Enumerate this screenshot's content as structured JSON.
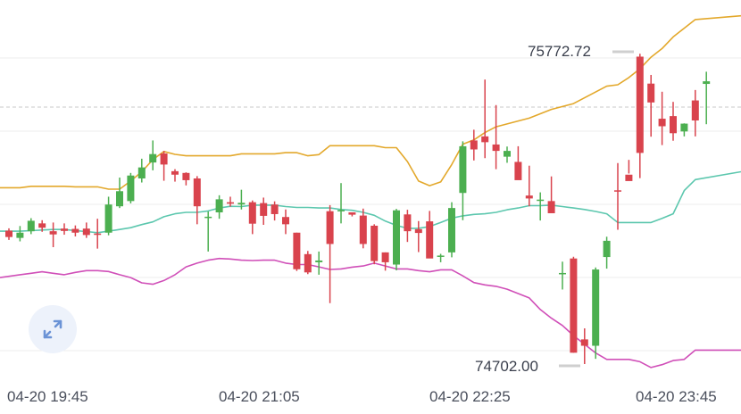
{
  "colors": {
    "up": "#4caf50",
    "down": "#d9434d",
    "upper_band": "#e3a82b",
    "middle_band": "#5cc7ae",
    "lower_band": "#d04fb8",
    "grid": "#eeeeee",
    "last_price_line": "#c8c8c8"
  },
  "expand_icon": "expand-arrows-icon",
  "chart_data": {
    "type": "candlestick",
    "x_tick_labels": [
      "04-20 19:45",
      "04-20 21:05",
      "04-20 22:25",
      "04-20 23:45"
    ],
    "y_scale": {
      "ref_high": 75772.72,
      "ref_low": 74702.0
    },
    "annotations": {
      "high_label": "75772.72",
      "low_label": "74702.00"
    },
    "series": [
      {
        "name": "candles",
        "values": [
          [
            75162,
            75170,
            75130,
            75140
          ],
          [
            75137,
            75178,
            75125,
            75155
          ],
          [
            75160,
            75205,
            75150,
            75196
          ],
          [
            75187,
            75198,
            75158,
            75172
          ],
          [
            75160,
            75190,
            75105,
            75149
          ],
          [
            75169,
            75187,
            75148,
            75161
          ],
          [
            75168,
            75180,
            75142,
            75155
          ],
          [
            75169,
            75190,
            75137,
            75147
          ],
          [
            75152,
            75203,
            75100,
            75150
          ],
          [
            75155,
            75279,
            75146,
            75252
          ],
          [
            75246,
            75345,
            75240,
            75298
          ],
          [
            75264,
            75361,
            75256,
            75352
          ],
          [
            75342,
            75410,
            75328,
            75380
          ],
          [
            75397,
            75473,
            75370,
            75426
          ],
          [
            75428,
            75437,
            75334,
            75390
          ],
          [
            75367,
            75374,
            75331,
            75355
          ],
          [
            75361,
            75363,
            75318,
            75336
          ],
          [
            75342,
            75350,
            75184,
            75246
          ],
          [
            75210,
            75228,
            75090,
            75210
          ],
          [
            75225,
            75284,
            75203,
            75270
          ],
          [
            75260,
            75279,
            75245,
            75255
          ],
          [
            75252,
            75303,
            75235,
            75258
          ],
          [
            75260,
            75266,
            75150,
            75186
          ],
          [
            75257,
            75276,
            75182,
            75213
          ],
          [
            75252,
            75263,
            75197,
            75219
          ],
          [
            75209,
            75235,
            75150,
            75184
          ],
          [
            75155,
            75155,
            75023,
            75029
          ],
          [
            75081,
            75092,
            75012,
            75018
          ],
          [
            75053,
            75090,
            75010,
            75059
          ],
          [
            75229,
            75250,
            74912,
            75116
          ],
          [
            75229,
            75326,
            75187,
            75233
          ],
          [
            75225,
            75225,
            75211,
            75217
          ],
          [
            75214,
            75238,
            75101,
            75116
          ],
          [
            75179,
            75184,
            75046,
            75057
          ],
          [
            75087,
            75087,
            75024,
            75053
          ],
          [
            75045,
            75237,
            75025,
            75232
          ],
          [
            75218,
            75234,
            75123,
            75160
          ],
          [
            75167,
            75195,
            75088,
            75154
          ],
          [
            75194,
            75230,
            75095,
            75066
          ],
          [
            75074,
            75082,
            75053,
            75076
          ],
          [
            75087,
            75260,
            75070,
            75240
          ],
          [
            75292,
            75470,
            75198,
            75453
          ],
          [
            75473,
            75510,
            75404,
            75442
          ],
          [
            75487,
            75683,
            75412,
            75467
          ],
          [
            75459,
            75595,
            75374,
            75437
          ],
          [
            75417,
            75452,
            75396,
            75437
          ],
          [
            75399,
            75453,
            75338,
            75336
          ],
          [
            75283,
            75386,
            75246,
            75273
          ],
          [
            75267,
            75294,
            75197,
            75269
          ],
          [
            75264,
            75349,
            75226,
            75222
          ],
          [
            75015,
            75055,
            74959,
            75016
          ],
          [
            75066,
            75072,
            74741,
            74741
          ],
          [
            74787,
            74825,
            74702,
            74765
          ],
          [
            74765,
            75035,
            74720,
            75028
          ],
          [
            75071,
            75141,
            75031,
            75127
          ],
          [
            75301,
            75395,
            75165,
            75297
          ],
          [
            75355,
            75406,
            75359,
            75333
          ],
          [
            75762,
            75772,
            75343,
            75430
          ],
          [
            75669,
            75699,
            75486,
            75604
          ],
          [
            75548,
            75641,
            75457,
            75522
          ],
          [
            75557,
            75606,
            75472,
            75498
          ],
          [
            75504,
            75532,
            75487,
            75531
          ],
          [
            75611,
            75647,
            75487,
            75542
          ],
          [
            75668,
            75710,
            75529,
            75677
          ]
        ]
      },
      {
        "name": "upper_band",
        "values": [
          75310,
          75310,
          75315,
          75315,
          75315,
          75315,
          75313,
          75313,
          75313,
          75305,
          75305,
          75333,
          75365,
          75407,
          75435,
          75425,
          75420,
          75420,
          75420,
          75420,
          75420,
          75427,
          75427,
          75427,
          75427,
          75431,
          75431,
          75420,
          75424,
          75455,
          75455,
          75455,
          75455,
          75455,
          75448,
          75448,
          75400,
          75333,
          75317,
          75330,
          75390,
          75460,
          75475,
          75500,
          75520,
          75530,
          75540,
          75550,
          75565,
          75580,
          75590,
          75600,
          75620,
          75640,
          75660,
          75665,
          75690,
          75720,
          75760,
          75790,
          75830,
          75860,
          75890,
          75903
        ]
      },
      {
        "name": "middle_band",
        "values": [
          75160,
          75160,
          75162,
          75164,
          75166,
          75166,
          75162,
          75159,
          75155,
          75160,
          75166,
          75172,
          75183,
          75192,
          75210,
          75220,
          75225,
          75225,
          75230,
          75240,
          75246,
          75245,
          75250,
          75250,
          75250,
          75245,
          75242,
          75242,
          75240,
          75240,
          75235,
          75232,
          75225,
          75215,
          75195,
          75180,
          75170,
          75170,
          75176,
          75190,
          75205,
          75213,
          75218,
          75220,
          75225,
          75234,
          75240,
          75248,
          75248,
          75250,
          75245,
          75240,
          75235,
          75228,
          75220,
          75190,
          75190,
          75190,
          75190,
          75204,
          75220,
          75300,
          75338,
          75365
        ]
      },
      {
        "name": "lower_band",
        "values": [
          75000,
          75010,
          75015,
          75020,
          75015,
          75010,
          75018,
          75024,
          75024,
          75021,
          75010,
          75000,
          74982,
          74977,
          74990,
          75010,
          75037,
          75050,
          75060,
          75066,
          75064,
          75060,
          75059,
          75060,
          75060,
          75050,
          75045,
          75045,
          75037,
          75028,
          75030,
          75036,
          75040,
          75050,
          75040,
          75030,
          75030,
          75024,
          75020,
          75027,
          75027,
          75006,
          74983,
          74975,
          74970,
          74960,
          74945,
          74930,
          74890,
          74860,
          74835,
          74800,
          74770,
          74740,
          74718,
          74718,
          74718,
          74710,
          74690,
          74700,
          74714,
          74718,
          74750,
          74750
        ]
      }
    ]
  }
}
